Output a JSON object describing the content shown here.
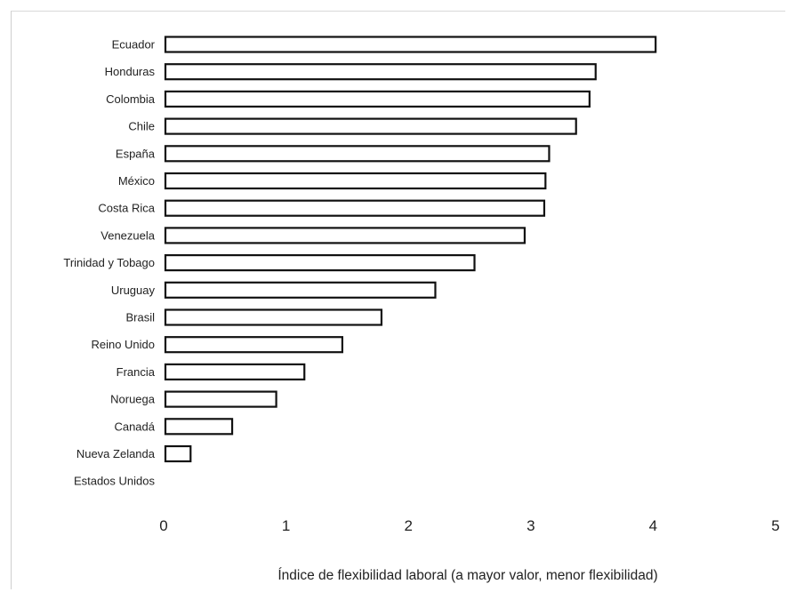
{
  "chart_data": {
    "type": "bar",
    "orientation": "horizontal",
    "title": "",
    "xlabel": "Índice de flexibilidad laboral (a mayor valor, menor flexibilidad)",
    "ylabel": "",
    "xlim": [
      0,
      5
    ],
    "xticks": [
      "0",
      "1",
      "2",
      "3",
      "4",
      "5"
    ],
    "grid": false,
    "legend": "none",
    "categories": [
      "Ecuador",
      "Honduras",
      "Colombia",
      "Chile",
      "España",
      "México",
      "Costa Rica",
      "Venezuela",
      "Trinidad y Tobago",
      "Uruguay",
      "Brasil",
      "Reino Unido",
      "Francia",
      "Noruega",
      "Canadá",
      "Nueva Zelanda",
      "Estados Unidos"
    ],
    "values": [
      4.02,
      3.53,
      3.48,
      3.37,
      3.15,
      3.12,
      3.11,
      2.95,
      2.54,
      2.22,
      1.78,
      1.46,
      1.15,
      0.92,
      0.56,
      0.22,
      0.0
    ],
    "bar_fill": "#ffffff",
    "bar_stroke": "#111111"
  }
}
